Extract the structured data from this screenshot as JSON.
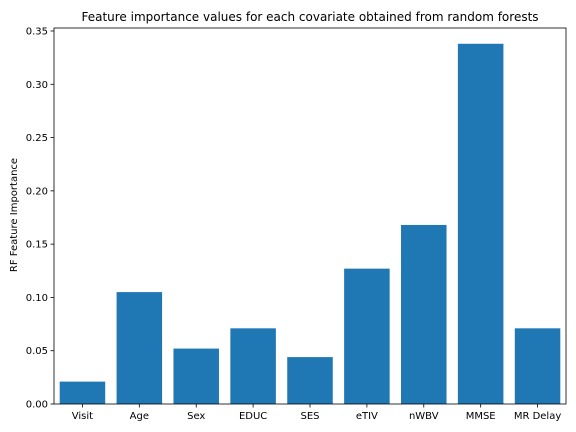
{
  "chart_data": {
    "type": "bar",
    "title": "Feature importance values for each covariate obtained from random forests",
    "xlabel": "",
    "ylabel": "RF Feature Importance",
    "categories": [
      "Visit",
      "Age",
      "Sex",
      "EDUC",
      "SES",
      "eTIV",
      "nWBV",
      "MMSE",
      "MR Delay"
    ],
    "values": [
      0.021,
      0.105,
      0.052,
      0.071,
      0.044,
      0.127,
      0.168,
      0.338,
      0.071
    ],
    "ylim": [
      0,
      0.3528
    ],
    "yticks": [
      "0.00",
      "0.05",
      "0.10",
      "0.15",
      "0.20",
      "0.25",
      "0.30",
      "0.35"
    ],
    "bar_color": "#1f77b4",
    "grid": false,
    "legend": "none"
  }
}
